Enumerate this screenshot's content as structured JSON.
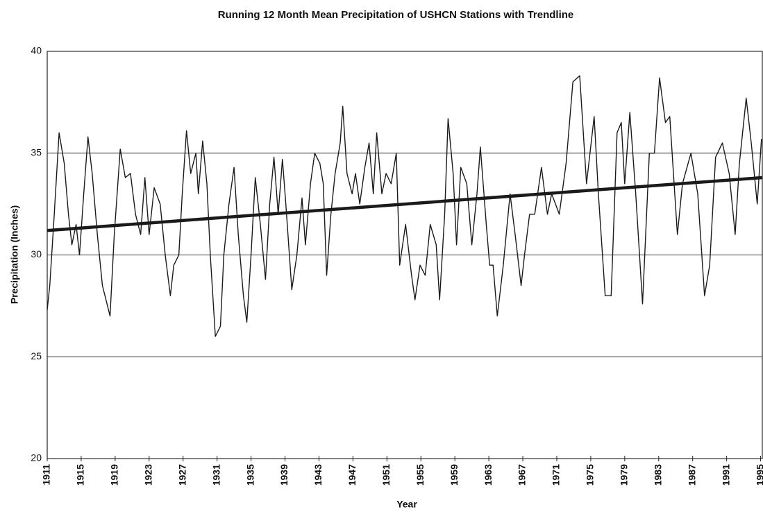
{
  "chart_data": {
    "type": "line",
    "title": "Running 12 Month Mean Precipitation of USHCN Stations with Trendline",
    "x_label": "Year",
    "y_label": "Precipitation (Inches)",
    "xlim": [
      1911,
      1995.2
    ],
    "ylim": [
      20,
      40
    ],
    "xticks": [
      1911,
      1915,
      1919,
      1923,
      1927,
      1931,
      1935,
      1939,
      1943,
      1947,
      1951,
      1955,
      1959,
      1963,
      1967,
      1971,
      1975,
      1979,
      1983,
      1987,
      1991,
      1995
    ],
    "yticks": [
      20,
      25,
      30,
      35,
      40
    ],
    "grid": true,
    "x": [
      1911.0,
      1911.3,
      1911.8,
      1912.4,
      1913.0,
      1913.5,
      1913.9,
      1914.4,
      1914.8,
      1915.3,
      1915.8,
      1916.3,
      1916.9,
      1917.5,
      1918.4,
      1918.9,
      1919.6,
      1920.2,
      1920.8,
      1921.4,
      1922.0,
      1922.5,
      1923.0,
      1923.6,
      1924.3,
      1924.9,
      1925.5,
      1925.9,
      1926.5,
      1926.9,
      1927.4,
      1927.9,
      1928.5,
      1928.8,
      1929.3,
      1929.8,
      1930.2,
      1930.8,
      1931.4,
      1931.8,
      1932.4,
      1933.0,
      1933.5,
      1934.1,
      1934.5,
      1935.0,
      1935.5,
      1936.1,
      1936.7,
      1937.2,
      1937.7,
      1938.2,
      1938.7,
      1939.1,
      1939.8,
      1940.4,
      1941.0,
      1941.4,
      1942.0,
      1942.5,
      1943.1,
      1943.5,
      1943.9,
      1944.4,
      1944.9,
      1945.5,
      1945.8,
      1946.3,
      1946.9,
      1947.3,
      1947.8,
      1948.4,
      1948.9,
      1949.4,
      1949.8,
      1950.4,
      1950.9,
      1951.5,
      1952.1,
      1952.5,
      1953.2,
      1953.9,
      1954.3,
      1954.9,
      1955.5,
      1956.1,
      1956.8,
      1957.2,
      1957.8,
      1958.2,
      1958.8,
      1959.2,
      1959.7,
      1960.4,
      1961.0,
      1961.6,
      1962.0,
      1962.7,
      1963.1,
      1963.5,
      1964.0,
      1964.7,
      1965.5,
      1966.1,
      1966.8,
      1967.2,
      1967.8,
      1968.4,
      1969.2,
      1969.9,
      1970.4,
      1971.3,
      1972.1,
      1972.9,
      1973.7,
      1974.5,
      1975.4,
      1975.9,
      1976.7,
      1977.4,
      1978.1,
      1978.6,
      1979.0,
      1979.6,
      1980.3,
      1981.1,
      1981.9,
      1982.5,
      1983.1,
      1983.8,
      1984.3,
      1985.2,
      1985.8,
      1986.8,
      1987.6,
      1988.4,
      1989.0,
      1989.7,
      1990.5,
      1991.3,
      1992.0,
      1992.5,
      1993.3,
      1993.9,
      1994.6,
      1995.1
    ],
    "series": [
      {
        "color": "#1a1a1a",
        "values": [
          27.3,
          28.5,
          31.8,
          36.0,
          34.5,
          32.0,
          30.5,
          31.5,
          30.0,
          33.0,
          35.8,
          34.0,
          31.0,
          28.5,
          27.0,
          31.0,
          35.2,
          33.8,
          34.0,
          32.0,
          31.0,
          33.8,
          31.0,
          33.3,
          32.5,
          30.0,
          28.0,
          29.5,
          30.0,
          33.0,
          36.1,
          34.0,
          35.0,
          33.0,
          35.6,
          33.5,
          30.0,
          26.0,
          26.5,
          30.0,
          32.5,
          34.3,
          31.0,
          28.0,
          26.7,
          30.0,
          33.8,
          31.5,
          28.8,
          32.5,
          34.8,
          32.0,
          34.7,
          32.5,
          28.3,
          30.0,
          32.8,
          30.5,
          33.5,
          35.0,
          34.5,
          33.5,
          29.0,
          32.0,
          34.0,
          35.5,
          37.3,
          34.0,
          33.0,
          34.0,
          32.5,
          34.3,
          35.5,
          33.0,
          36.0,
          33.0,
          34.0,
          33.5,
          35.0,
          29.5,
          31.5,
          29.0,
          27.8,
          29.5,
          29.0,
          31.5,
          30.5,
          27.8,
          32.0,
          36.7,
          34.0,
          30.5,
          34.3,
          33.5,
          30.5,
          33.0,
          35.3,
          31.5,
          29.5,
          29.5,
          27.0,
          29.5,
          33.0,
          31.0,
          28.5,
          30.0,
          32.0,
          32.0,
          34.3,
          32.0,
          33.0,
          32.0,
          34.5,
          38.5,
          38.8,
          33.5,
          36.8,
          33.0,
          28.0,
          28.0,
          36.0,
          36.5,
          33.5,
          37.0,
          33.0,
          27.6,
          35.0,
          35.0,
          38.7,
          36.5,
          36.8,
          31.0,
          33.5,
          35.0,
          33.0,
          28.0,
          29.5,
          34.8,
          35.5,
          34.0,
          31.0,
          34.5,
          37.7,
          35.5,
          32.5,
          35.7
        ]
      }
    ],
    "trendline": {
      "color": "#1a1a1a",
      "x": [
        1911,
        1995.2
      ],
      "values": [
        31.2,
        33.8
      ]
    }
  }
}
